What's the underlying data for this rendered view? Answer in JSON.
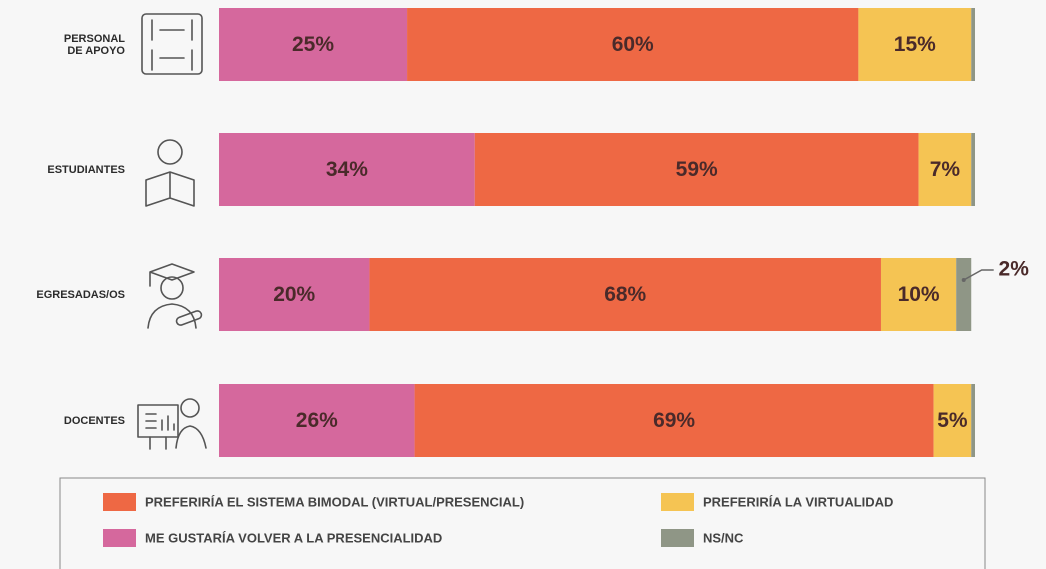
{
  "chart_data": {
    "type": "stacked-bar-horizontal",
    "categories": [
      "PERSONAL DE APOYO",
      "ESTUDIANTES",
      "EGRESADAS/OS",
      "DOCENTES"
    ],
    "series": [
      {
        "name": "ME GUSTARÍA VOLVER A LA PRESENCIALIDAD",
        "color": "#d5689d",
        "values": [
          25,
          34,
          20,
          26
        ],
        "value_labels": [
          "25%",
          "34%",
          "20%",
          "26%"
        ]
      },
      {
        "name": "PREFERIRÍA EL SISTEMA BIMODAL (VIRTUAL/PRESENCIAL)",
        "color": "#ee6844",
        "values": [
          60,
          59,
          68,
          69
        ],
        "value_labels": [
          "60%",
          "59%",
          "68%",
          "69%"
        ]
      },
      {
        "name": "PREFERIRÍA LA VIRTUALIDAD",
        "color": "#f5c453",
        "values": [
          15,
          7,
          10,
          5
        ],
        "value_labels": [
          "15%",
          "7%",
          "10%",
          "5%"
        ]
      },
      {
        "name": "NS/NC",
        "color": "#8f9686",
        "values": [
          0.5,
          0.5,
          2,
          0.5
        ],
        "value_labels": [
          null,
          null,
          "2%",
          null
        ]
      }
    ],
    "xlim": [
      0,
      100.5
    ]
  }
}
